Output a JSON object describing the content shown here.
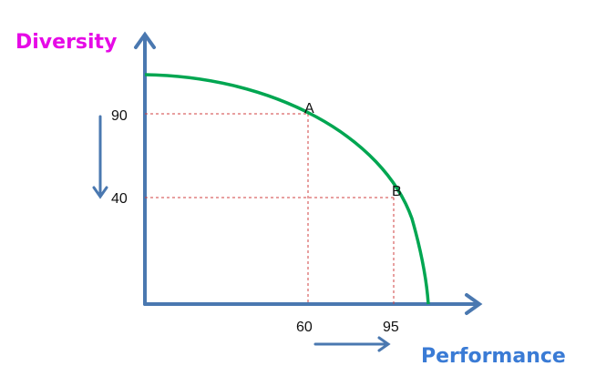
{
  "chart_data": {
    "type": "line",
    "title": "",
    "xlabel": "Performance",
    "ylabel": "Diversity",
    "x_ticks": [
      "60",
      "95"
    ],
    "y_ticks": [
      "90",
      "40"
    ],
    "points": [
      {
        "label": "A",
        "x": 60,
        "y": 90
      },
      {
        "label": "B",
        "x": 95,
        "y": 40
      }
    ],
    "curve": "concave frontier",
    "colors": {
      "axis": "#4a78b0",
      "curve": "#00a651",
      "guide": "#d04040",
      "xlabel": "#3a7bd5",
      "ylabel": "#e60ae6"
    }
  }
}
